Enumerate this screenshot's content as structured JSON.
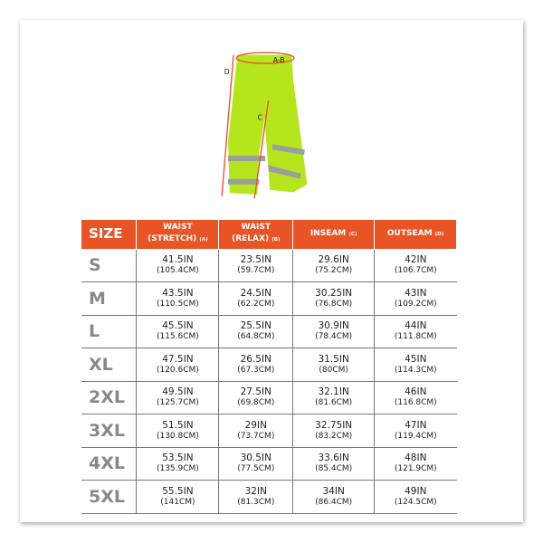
{
  "diagram": {
    "labels": {
      "waist": "A-B",
      "inseam": "C",
      "outseam": "D"
    },
    "colors": {
      "pants": "#b5e61d",
      "reflective": "#9a9f9c",
      "arrows": "#e85426"
    }
  },
  "table": {
    "header_color": "#e85426",
    "headers": [
      {
        "main": "SIZE",
        "sub": ""
      },
      {
        "main": "WAIST",
        "line2": "(STRETCH)",
        "sub": "(A)"
      },
      {
        "main": "WAIST",
        "line2": "(RELAX)",
        "sub": "(B)"
      },
      {
        "main": "INSEAM",
        "sub": "(C)"
      },
      {
        "main": "OUTSEAM",
        "sub": "(D)"
      }
    ],
    "rows": [
      {
        "size": "S",
        "cells": [
          [
            "41.5IN",
            "(105.4CM)"
          ],
          [
            "23.5IN",
            "(59.7CM)"
          ],
          [
            "29.6IN",
            "(75.2CM)"
          ],
          [
            "42IN",
            "(106.7CM)"
          ]
        ]
      },
      {
        "size": "M",
        "cells": [
          [
            "43.5IN",
            "(110.5CM)"
          ],
          [
            "24.5IN",
            "(62.2CM)"
          ],
          [
            "30.25IN",
            "(76.8CM)"
          ],
          [
            "43IN",
            "(109.2CM)"
          ]
        ]
      },
      {
        "size": "L",
        "cells": [
          [
            "45.5IN",
            "(115.6CM)"
          ],
          [
            "25.5IN",
            "(64.8CM)"
          ],
          [
            "30.9IN",
            "(78.4CM)"
          ],
          [
            "44IN",
            "(111.8CM)"
          ]
        ]
      },
      {
        "size": "XL",
        "cells": [
          [
            "47.5IN",
            "(120.6CM)"
          ],
          [
            "26.5IN",
            "(67.3CM)"
          ],
          [
            "31.5IN",
            "(80CM)"
          ],
          [
            "45IN",
            "(114.3CM)"
          ]
        ]
      },
      {
        "size": "2XL",
        "cells": [
          [
            "49.5IN",
            "(125.7CM)"
          ],
          [
            "27.5IN",
            "(69.8CM)"
          ],
          [
            "32.1IN",
            "(81.6CM)"
          ],
          [
            "46IN",
            "(116.8CM)"
          ]
        ]
      },
      {
        "size": "3XL",
        "cells": [
          [
            "51.5IN",
            "(130.8CM)"
          ],
          [
            "29IN",
            "(73.7CM)"
          ],
          [
            "32.75IN",
            "(83.2CM)"
          ],
          [
            "47IN",
            "(119.4CM)"
          ]
        ]
      },
      {
        "size": "4XL",
        "cells": [
          [
            "53.5IN",
            "(135.9CM)"
          ],
          [
            "30.5IN",
            "(77.5CM)"
          ],
          [
            "33.6IN",
            "(85.4CM)"
          ],
          [
            "48IN",
            "(121.9CM)"
          ]
        ]
      },
      {
        "size": "5XL",
        "cells": [
          [
            "55.5IN",
            "(141CM)"
          ],
          [
            "32IN",
            "(81.3CM)"
          ],
          [
            "34IN",
            "(86.4CM)"
          ],
          [
            "49IN",
            "(124.5CM)"
          ]
        ]
      }
    ]
  }
}
